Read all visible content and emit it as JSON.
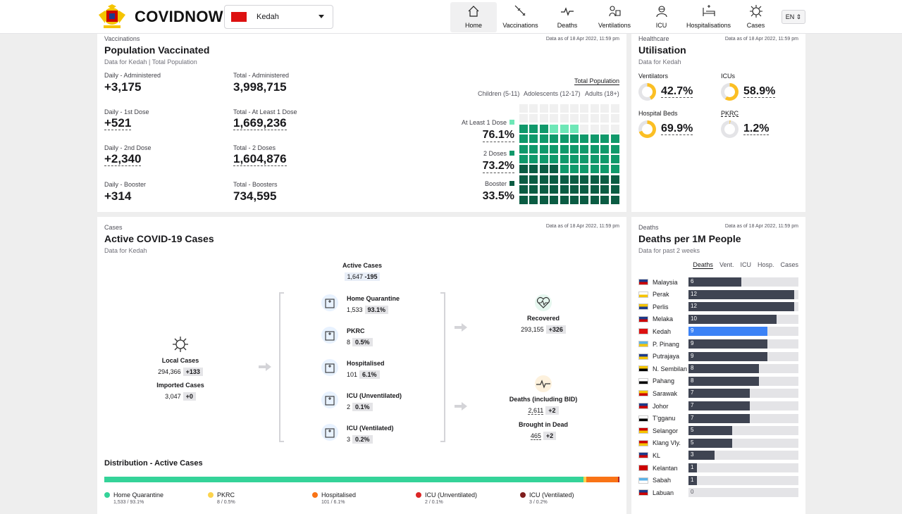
{
  "app": {
    "name": "COVIDNOW",
    "state": "Kedah",
    "lang": "EN"
  },
  "nav": [
    {
      "label": "Home",
      "icon": "home-icon",
      "active": true
    },
    {
      "label": "Vaccinations",
      "icon": "syringe-icon"
    },
    {
      "label": "Deaths",
      "icon": "pulse-icon"
    },
    {
      "label": "Ventilations",
      "icon": "ventilator-icon"
    },
    {
      "label": "ICU",
      "icon": "icu-icon"
    },
    {
      "label": "Hospitalisations",
      "icon": "hospital-bed-icon"
    },
    {
      "label": "Cases",
      "icon": "virus-icon"
    }
  ],
  "vacc": {
    "kicker": "Vaccinations",
    "title": "Population Vaccinated",
    "sub": "Data for Kedah | Total Population",
    "date": "Data as of 18 Apr 2022, 11:59 pm",
    "stats": [
      {
        "label": "Daily - Administered",
        "value": "+3,175"
      },
      {
        "label": "Total - Administered",
        "value": "3,998,715"
      },
      {
        "label": "Daily - 1st Dose",
        "value": "+521"
      },
      {
        "label": "Total - At Least 1 Dose",
        "value": "1,669,236"
      },
      {
        "label": "Daily - 2nd Dose",
        "value": "+2,340"
      },
      {
        "label": "Total - 2 Doses",
        "value": "1,604,876"
      },
      {
        "label": "Daily - Booster",
        "value": "+314"
      },
      {
        "label": "Total - Boosters",
        "value": "734,595"
      }
    ],
    "tabs": {
      "main": "Total Population",
      "children": "Children (5-11)",
      "adolescents": "Adolescents (12-17)",
      "adults": "Adults (18+)"
    },
    "waffle": [
      {
        "label": "At Least 1 Dose",
        "pct": "76.1%",
        "value": 76.1,
        "color": "#6ee7b7"
      },
      {
        "label": "2 Doses",
        "pct": "73.2%",
        "value": 73.2,
        "color": "#10996b"
      },
      {
        "label": "Booster",
        "pct": "33.5%",
        "value": 33.5,
        "color": "#0b5c43"
      }
    ]
  },
  "health": {
    "kicker": "Healthcare",
    "title": "Utilisation",
    "sub": "Data for Kedah",
    "date": "Data as of 18 Apr 2022, 11:59 pm",
    "items": [
      {
        "label": "Ventilators",
        "pct": "42.7%",
        "value": 42.7
      },
      {
        "label": "ICUs",
        "pct": "58.9%",
        "value": 58.9
      },
      {
        "label": "Hospital Beds",
        "pct": "69.9%",
        "value": 69.9
      },
      {
        "label": "PKRC",
        "pct": "1.2%",
        "value": 1.2
      }
    ]
  },
  "cases": {
    "kicker": "Cases",
    "title": "Active COVID-19 Cases",
    "sub": "Data for Kedah",
    "date": "Data as of 18 Apr 2022, 11:59 pm",
    "active": {
      "label": "Active Cases",
      "value": "1,647",
      "delta": "-195"
    },
    "local": {
      "label": "Local Cases",
      "value": "294,366",
      "delta": "+133"
    },
    "imported": {
      "label": "Imported Cases",
      "value": "3,047",
      "delta": "+0"
    },
    "flow": [
      {
        "label": "Home Quarantine",
        "value": "1,533",
        "pct": "93.1%",
        "icon": "home-quarantine-icon"
      },
      {
        "label": "PKRC",
        "value": "8",
        "pct": "0.5%",
        "icon": "pkrc-building-icon"
      },
      {
        "label": "Hospitalised",
        "value": "101",
        "pct": "6.1%",
        "icon": "hospital-cross-icon"
      },
      {
        "label": "ICU (Unventilated)",
        "value": "2",
        "pct": "0.1%",
        "icon": "icu-unventilated-icon"
      },
      {
        "label": "ICU (Ventilated)",
        "value": "3",
        "pct": "0.2%",
        "icon": "icu-ventilated-icon"
      }
    ],
    "recovered": {
      "label": "Recovered",
      "value": "293,155",
      "delta": "+326"
    },
    "deaths": {
      "label": "Deaths (including BID)",
      "value": "2,611",
      "delta": "+2"
    },
    "bid": {
      "label": "Brought in Dead",
      "value": "465",
      "delta": "+2"
    },
    "dist_title": "Distribution - Active Cases",
    "distribution": [
      {
        "label": "Home Quarantine",
        "value": "1,533 / 93.1%",
        "share": 93.1,
        "color": "#34d399"
      },
      {
        "label": "PKRC",
        "value": "8 / 0.5%",
        "share": 0.5,
        "color": "#fcd34d"
      },
      {
        "label": "Hospitalised",
        "value": "101 / 6.1%",
        "share": 6.1,
        "color": "#f97316"
      },
      {
        "label": "ICU (Unventilated)",
        "value": "2 / 0.1%",
        "share": 0.1,
        "color": "#dc2626"
      },
      {
        "label": "ICU (Ventilated)",
        "value": "3 / 0.2%",
        "share": 0.2,
        "color": "#7f1d1d"
      }
    ]
  },
  "deaths": {
    "kicker": "Deaths",
    "title": "Deaths per 1M People",
    "sub": "Data for past 2 weeks",
    "date": "Data as of 18 Apr 2022, 11:59 pm",
    "tabs": [
      "Deaths",
      "Vent.",
      "ICU",
      "Hosp.",
      "Cases"
    ],
    "max": 12.5,
    "rows": [
      {
        "name": "Malaysia",
        "value": 6,
        "label": "6",
        "flag": [
          "#1d3a8a",
          "#cc0000"
        ]
      },
      {
        "name": "Perak",
        "value": 12,
        "label": "12",
        "flag": [
          "#ffffff",
          "#f5c400"
        ]
      },
      {
        "name": "Perlis",
        "value": 12,
        "label": "12",
        "flag": [
          "#f5c400",
          "#1d3a8a"
        ]
      },
      {
        "name": "Melaka",
        "value": 10,
        "label": "10",
        "flag": [
          "#1d3a8a",
          "#cc0000"
        ]
      },
      {
        "name": "Kedah",
        "value": 9,
        "label": "9",
        "flag": [
          "#dd1111",
          "#dd1111"
        ],
        "highlight": true
      },
      {
        "name": "P. Pinang",
        "value": 9,
        "label": "9",
        "flag": [
          "#5bb3e8",
          "#f5c400"
        ]
      },
      {
        "name": "Putrajaya",
        "value": 9,
        "label": "9",
        "flag": [
          "#1d3a8a",
          "#f5c400"
        ]
      },
      {
        "name": "N. Sembilan",
        "value": 8,
        "label": "8",
        "flag": [
          "#f5c400",
          "#000000"
        ]
      },
      {
        "name": "Pahang",
        "value": 8,
        "label": "8",
        "flag": [
          "#ffffff",
          "#000000"
        ]
      },
      {
        "name": "Sarawak",
        "value": 7,
        "label": "7",
        "flag": [
          "#f5c400",
          "#cc0000"
        ]
      },
      {
        "name": "Johor",
        "value": 7,
        "label": "7",
        "flag": [
          "#1d3a8a",
          "#cc0000"
        ]
      },
      {
        "name": "T'gganu",
        "value": 7,
        "label": "7",
        "flag": [
          "#ffffff",
          "#000000"
        ]
      },
      {
        "name": "Selangor",
        "value": 5,
        "label": "5",
        "flag": [
          "#cc0000",
          "#f5c400"
        ]
      },
      {
        "name": "Klang Vly.",
        "value": 5,
        "label": "5",
        "flag": [
          "#cc0000",
          "#f5c400"
        ]
      },
      {
        "name": "KL",
        "value": 3,
        "label": "3",
        "flag": [
          "#1d3a8a",
          "#cc0000"
        ]
      },
      {
        "name": "Kelantan",
        "value": 1,
        "label": "1",
        "flag": [
          "#cc0000",
          "#cc0000"
        ]
      },
      {
        "name": "Sabah",
        "value": 1,
        "label": "1",
        "flag": [
          "#5bb3e8",
          "#ffffff"
        ]
      },
      {
        "name": "Labuan",
        "value": 0,
        "label": "0",
        "flag": [
          "#1d3a8a",
          "#cc0000"
        ]
      }
    ]
  }
}
